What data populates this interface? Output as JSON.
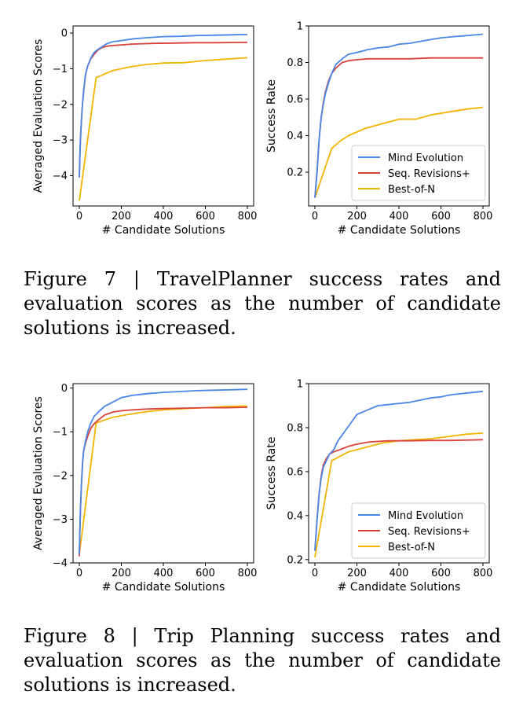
{
  "colors": {
    "mind": "#4a86e8",
    "seq": "#d9413b",
    "bon": "#f2b400"
  },
  "figure7": {
    "caption": "Figure 7 | TravelPlanner success rates and evaluation scores as the number of candidate solutions is increased.",
    "left": {
      "type": "line",
      "xlabel": "# Candidate Solutions",
      "ylabel": "Averaged Evaluation Scores",
      "xlim": [
        -30,
        830
      ],
      "ylim": [
        -4.85,
        0.2
      ],
      "xticks": [
        0,
        200,
        400,
        600,
        800
      ],
      "yticks": [
        0,
        -1,
        -2,
        -3,
        -4
      ],
      "series": [
        {
          "name": "Mind Evolution",
          "color": "mind",
          "points": [
            [
              0,
              -4.05
            ],
            [
              3,
              -3.4
            ],
            [
              6,
              -2.9
            ],
            [
              10,
              -2.45
            ],
            [
              15,
              -2.0
            ],
            [
              20,
              -1.65
            ],
            [
              30,
              -1.15
            ],
            [
              40,
              -0.92
            ],
            [
              55,
              -0.7
            ],
            [
              70,
              -0.55
            ],
            [
              90,
              -0.45
            ],
            [
              110,
              -0.38
            ],
            [
              130,
              -0.3
            ],
            [
              160,
              -0.24
            ],
            [
              200,
              -0.21
            ],
            [
              260,
              -0.16
            ],
            [
              320,
              -0.13
            ],
            [
              400,
              -0.1
            ],
            [
              480,
              -0.09
            ],
            [
              560,
              -0.07
            ],
            [
              640,
              -0.06
            ],
            [
              720,
              -0.05
            ],
            [
              800,
              -0.04
            ]
          ]
        },
        {
          "name": "Seq. Revisions+",
          "color": "seq",
          "points": [
            [
              0,
              -4.05
            ],
            [
              3,
              -3.4
            ],
            [
              6,
              -2.9
            ],
            [
              10,
              -2.45
            ],
            [
              15,
              -2.0
            ],
            [
              20,
              -1.65
            ],
            [
              30,
              -1.15
            ],
            [
              40,
              -0.92
            ],
            [
              55,
              -0.72
            ],
            [
              70,
              -0.6
            ],
            [
              90,
              -0.47
            ],
            [
              110,
              -0.4
            ],
            [
              140,
              -0.36
            ],
            [
              180,
              -0.34
            ],
            [
              250,
              -0.31
            ],
            [
              350,
              -0.29
            ],
            [
              450,
              -0.28
            ],
            [
              550,
              -0.27
            ],
            [
              650,
              -0.27
            ],
            [
              800,
              -0.26
            ]
          ]
        },
        {
          "name": "Best-of-N",
          "color": "bon",
          "points": [
            [
              0,
              -4.7
            ],
            [
              80,
              -1.25
            ],
            [
              120,
              -1.15
            ],
            [
              160,
              -1.05
            ],
            [
              240,
              -0.95
            ],
            [
              320,
              -0.88
            ],
            [
              400,
              -0.84
            ],
            [
              500,
              -0.83
            ],
            [
              600,
              -0.77
            ],
            [
              700,
              -0.73
            ],
            [
              800,
              -0.69
            ]
          ]
        }
      ]
    },
    "right": {
      "type": "line",
      "xlabel": "# Candidate Solutions",
      "ylabel": "Success Rate",
      "xlim": [
        -30,
        830
      ],
      "ylim": [
        0.015,
        1.0
      ],
      "xticks": [
        0,
        200,
        400,
        600,
        800
      ],
      "yticks": [
        0.2,
        0.4,
        0.6,
        0.8,
        1.0
      ],
      "legend": [
        "Mind Evolution",
        "Seq. Revisions+",
        "Best-of-N"
      ],
      "series": [
        {
          "name": "Mind Evolution",
          "color": "mind",
          "points": [
            [
              0,
              0.06
            ],
            [
              10,
              0.2
            ],
            [
              20,
              0.38
            ],
            [
              30,
              0.5
            ],
            [
              40,
              0.57
            ],
            [
              50,
              0.63
            ],
            [
              65,
              0.69
            ],
            [
              80,
              0.74
            ],
            [
              100,
              0.79
            ],
            [
              130,
              0.82
            ],
            [
              160,
              0.845
            ],
            [
              200,
              0.855
            ],
            [
              250,
              0.87
            ],
            [
              300,
              0.88
            ],
            [
              350,
              0.885
            ],
            [
              400,
              0.9
            ],
            [
              450,
              0.905
            ],
            [
              500,
              0.915
            ],
            [
              550,
              0.925
            ],
            [
              600,
              0.935
            ],
            [
              650,
              0.94
            ],
            [
              700,
              0.945
            ],
            [
              750,
              0.95
            ],
            [
              800,
              0.955
            ]
          ]
        },
        {
          "name": "Seq. Revisions+",
          "color": "seq",
          "points": [
            [
              0,
              0.06
            ],
            [
              10,
              0.2
            ],
            [
              20,
              0.38
            ],
            [
              30,
              0.5
            ],
            [
              40,
              0.58
            ],
            [
              50,
              0.64
            ],
            [
              65,
              0.7
            ],
            [
              80,
              0.74
            ],
            [
              100,
              0.77
            ],
            [
              130,
              0.8
            ],
            [
              160,
              0.81
            ],
            [
              200,
              0.815
            ],
            [
              250,
              0.82
            ],
            [
              350,
              0.82
            ],
            [
              450,
              0.82
            ],
            [
              550,
              0.825
            ],
            [
              650,
              0.825
            ],
            [
              800,
              0.825
            ]
          ]
        },
        {
          "name": "Best-of-N",
          "color": "bon",
          "points": [
            [
              0,
              0.06
            ],
            [
              80,
              0.33
            ],
            [
              120,
              0.37
            ],
            [
              160,
              0.4
            ],
            [
              240,
              0.44
            ],
            [
              320,
              0.465
            ],
            [
              400,
              0.49
            ],
            [
              480,
              0.49
            ],
            [
              560,
              0.515
            ],
            [
              640,
              0.53
            ],
            [
              720,
              0.545
            ],
            [
              800,
              0.555
            ]
          ]
        }
      ]
    }
  },
  "figure8": {
    "caption": "Figure 8 | Trip Planning success rates and evaluation scores as the number of candidate solutions is increased.",
    "left": {
      "type": "line",
      "xlabel": "# Candidate Solutions",
      "ylabel": "Averaged Evaluation Scores",
      "xlim": [
        -30,
        830
      ],
      "ylim": [
        -4.0,
        0.1
      ],
      "xticks": [
        0,
        200,
        400,
        600,
        800
      ],
      "yticks": [
        0,
        -1,
        -2,
        -3,
        -4
      ],
      "series": [
        {
          "name": "Mind Evolution",
          "color": "mind",
          "points": [
            [
              0,
              -3.8
            ],
            [
              3,
              -3.2
            ],
            [
              6,
              -2.7
            ],
            [
              10,
              -2.2
            ],
            [
              15,
              -1.75
            ],
            [
              20,
              -1.45
            ],
            [
              30,
              -1.2
            ],
            [
              40,
              -1.0
            ],
            [
              55,
              -0.8
            ],
            [
              70,
              -0.65
            ],
            [
              90,
              -0.55
            ],
            [
              120,
              -0.42
            ],
            [
              160,
              -0.32
            ],
            [
              200,
              -0.22
            ],
            [
              250,
              -0.17
            ],
            [
              320,
              -0.13
            ],
            [
              400,
              -0.1
            ],
            [
              480,
              -0.08
            ],
            [
              560,
              -0.06
            ],
            [
              640,
              -0.05
            ],
            [
              720,
              -0.04
            ],
            [
              800,
              -0.03
            ]
          ]
        },
        {
          "name": "Seq. Revisions+",
          "color": "seq",
          "points": [
            [
              0,
              -3.85
            ],
            [
              3,
              -3.2
            ],
            [
              6,
              -2.7
            ],
            [
              10,
              -2.2
            ],
            [
              15,
              -1.75
            ],
            [
              20,
              -1.45
            ],
            [
              30,
              -1.25
            ],
            [
              40,
              -1.1
            ],
            [
              55,
              -0.92
            ],
            [
              70,
              -0.82
            ],
            [
              90,
              -0.73
            ],
            [
              120,
              -0.62
            ],
            [
              160,
              -0.55
            ],
            [
              200,
              -0.52
            ],
            [
              250,
              -0.5
            ],
            [
              320,
              -0.48
            ],
            [
              400,
              -0.47
            ],
            [
              500,
              -0.46
            ],
            [
              600,
              -0.45
            ],
            [
              700,
              -0.45
            ],
            [
              800,
              -0.44
            ]
          ]
        },
        {
          "name": "Best-of-N",
          "color": "bon",
          "points": [
            [
              0,
              -3.8
            ],
            [
              80,
              -0.8
            ],
            [
              120,
              -0.73
            ],
            [
              160,
              -0.67
            ],
            [
              240,
              -0.6
            ],
            [
              320,
              -0.54
            ],
            [
              400,
              -0.5
            ],
            [
              500,
              -0.47
            ],
            [
              600,
              -0.45
            ],
            [
              700,
              -0.42
            ],
            [
              800,
              -0.41
            ]
          ]
        }
      ]
    },
    "right": {
      "type": "line",
      "xlabel": "# Candidate Solutions",
      "ylabel": "Success Rate",
      "xlim": [
        -30,
        830
      ],
      "ylim": [
        0.185,
        1.0
      ],
      "xticks": [
        0,
        200,
        400,
        600,
        800
      ],
      "yticks": [
        0.2,
        0.4,
        0.6,
        0.8,
        1.0
      ],
      "legend": [
        "Mind Evolution",
        "Seq. Revisions+",
        "Best-of-N"
      ],
      "series": [
        {
          "name": "Mind Evolution",
          "color": "mind",
          "points": [
            [
              0,
              0.24
            ],
            [
              10,
              0.38
            ],
            [
              20,
              0.5
            ],
            [
              30,
              0.57
            ],
            [
              40,
              0.62
            ],
            [
              55,
              0.65
            ],
            [
              70,
              0.68
            ],
            [
              90,
              0.7
            ],
            [
              110,
              0.74
            ],
            [
              140,
              0.78
            ],
            [
              170,
              0.82
            ],
            [
              200,
              0.86
            ],
            [
              250,
              0.88
            ],
            [
              300,
              0.9
            ],
            [
              350,
              0.905
            ],
            [
              400,
              0.91
            ],
            [
              450,
              0.915
            ],
            [
              500,
              0.925
            ],
            [
              550,
              0.935
            ],
            [
              600,
              0.94
            ],
            [
              650,
              0.95
            ],
            [
              700,
              0.955
            ],
            [
              750,
              0.96
            ],
            [
              800,
              0.965
            ]
          ]
        },
        {
          "name": "Seq. Revisions+",
          "color": "seq",
          "points": [
            [
              0,
              0.24
            ],
            [
              10,
              0.38
            ],
            [
              20,
              0.5
            ],
            [
              30,
              0.58
            ],
            [
              40,
              0.63
            ],
            [
              55,
              0.66
            ],
            [
              70,
              0.68
            ],
            [
              90,
              0.69
            ],
            [
              120,
              0.7
            ],
            [
              160,
              0.715
            ],
            [
              200,
              0.725
            ],
            [
              260,
              0.735
            ],
            [
              350,
              0.74
            ],
            [
              450,
              0.74
            ],
            [
              550,
              0.742
            ],
            [
              650,
              0.742
            ],
            [
              800,
              0.745
            ]
          ]
        },
        {
          "name": "Best-of-N",
          "color": "bon",
          "points": [
            [
              0,
              0.21
            ],
            [
              80,
              0.65
            ],
            [
              120,
              0.67
            ],
            [
              160,
              0.69
            ],
            [
              240,
              0.71
            ],
            [
              320,
              0.73
            ],
            [
              400,
              0.74
            ],
            [
              480,
              0.745
            ],
            [
              560,
              0.75
            ],
            [
              640,
              0.76
            ],
            [
              720,
              0.77
            ],
            [
              800,
              0.775
            ]
          ]
        }
      ]
    }
  }
}
